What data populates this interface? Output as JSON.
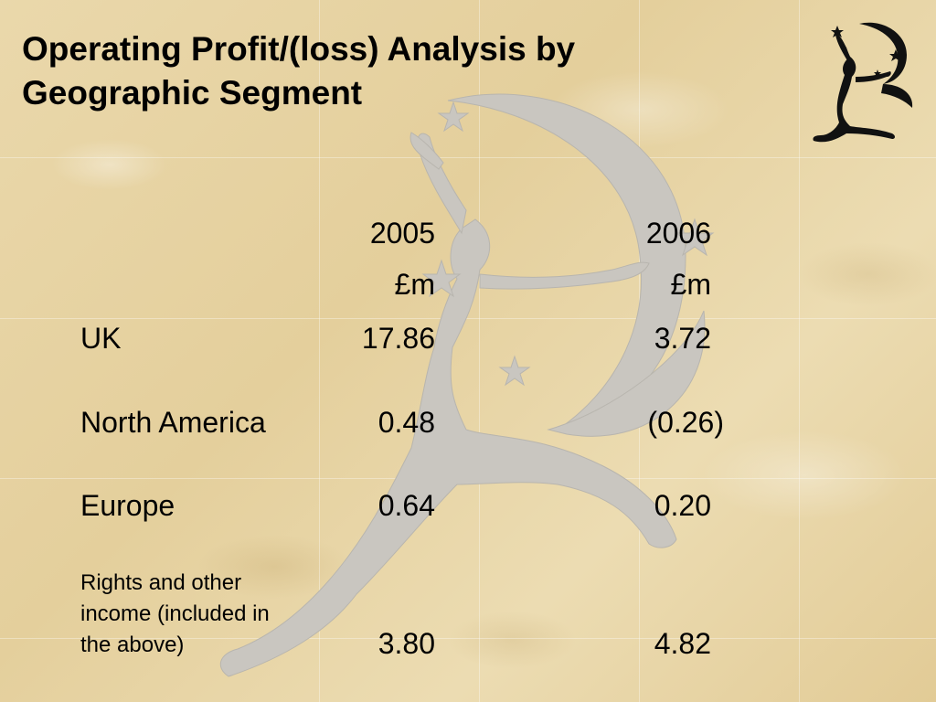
{
  "title": {
    "line1": "Operating Profit/(loss) Analysis by",
    "line2": "Geographic Segment"
  },
  "table": {
    "columns": [
      {
        "year": "2005",
        "unit": "£m"
      },
      {
        "year": "2006",
        "unit": "£m"
      }
    ],
    "rows": [
      {
        "label": "UK",
        "values": [
          "17.86",
          "3.72"
        ]
      },
      {
        "label": "North America",
        "values": [
          "0.48",
          "(0.26)"
        ]
      },
      {
        "label": "Europe",
        "values": [
          "0.64",
          "0.20"
        ]
      },
      {
        "label_lines": [
          "Rights and other",
          "income (included in",
          "the above)"
        ],
        "values": [
          "3.80",
          "4.82"
        ]
      }
    ]
  },
  "icons": {
    "watermark": "leaping-figure-moon-watermark",
    "logo": "leaping-figure-moon-logo"
  },
  "colors": {
    "background": "#e9d6a8",
    "watermark": "#c9c6c0",
    "text": "#000000"
  }
}
